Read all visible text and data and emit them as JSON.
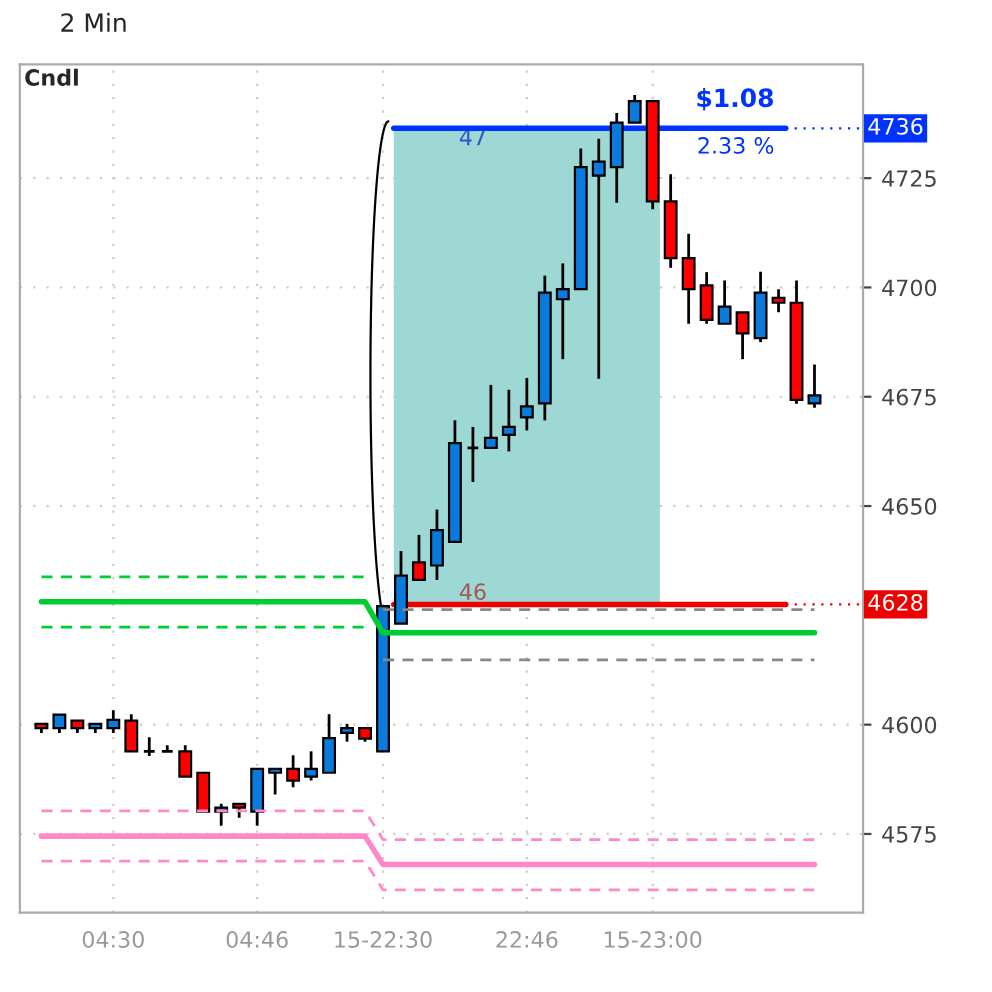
{
  "chart_data": {
    "type": "candlestick",
    "title": "2 Min",
    "categories": [
      null,
      null,
      null,
      null,
      "04:30",
      null,
      null,
      null,
      null,
      null,
      null,
      null,
      "04:46",
      null,
      null,
      null,
      null,
      null,
      null,
      "15-22:30",
      null,
      null,
      null,
      null,
      null,
      null,
      null,
      "22:46",
      null,
      null,
      null,
      null,
      null,
      null,
      "15-23:00",
      null,
      null,
      null,
      null,
      null,
      null,
      null,
      null,
      null
    ],
    "ohlc": [
      [
        4600.2,
        4600.2,
        4598.1,
        4599.2
      ],
      [
        4599.2,
        4602.3,
        4598.1,
        4602.3
      ],
      [
        4600.9,
        4600.9,
        4598.1,
        4599.2
      ],
      [
        4599.2,
        4600.2,
        4598.1,
        4600.2
      ],
      [
        4599.2,
        4603.3,
        4598.1,
        4601.1
      ],
      [
        4600.9,
        4602.4,
        4593.9,
        4593.9
      ],
      [
        4593.9,
        4597.1,
        4592.8,
        4593.9
      ],
      [
        4593.9,
        4595.3,
        4593.9,
        4593.9
      ],
      [
        4593.9,
        4595.3,
        4588.1,
        4588.1
      ],
      [
        4589.0,
        4589.0,
        4580.1,
        4580.1
      ],
      [
        4580.1,
        4581.9,
        4576.9,
        4581.0
      ],
      [
        4581.9,
        4581.9,
        4578.7,
        4581.0
      ],
      [
        4580.1,
        4589.9,
        4576.9,
        4589.9
      ],
      [
        4589.0,
        4589.9,
        4584.0,
        4589.9
      ],
      [
        4589.9,
        4593.0,
        4585.7,
        4587.2
      ],
      [
        4588.1,
        4593.9,
        4587.2,
        4589.9
      ],
      [
        4589.0,
        4602.4,
        4589.0,
        4596.9
      ],
      [
        4598.1,
        4600.2,
        4596.1,
        4599.2
      ],
      [
        4599.2,
        4599.2,
        4596.1,
        4596.8
      ],
      [
        4593.9,
        4627.1,
        4593.9,
        4627.1
      ],
      [
        4623.1,
        4639.7,
        4623.1,
        4634.1
      ],
      [
        4637.1,
        4643.4,
        4633.1,
        4633.1
      ],
      [
        4636.4,
        4649.2,
        4633.1,
        4644.5
      ],
      [
        4641.8,
        4669.6,
        4641.8,
        4664.4
      ],
      [
        4663.3,
        4668.1,
        4655.5,
        4663.3
      ],
      [
        4663.3,
        4677.7,
        4663.3,
        4665.6
      ],
      [
        4666.3,
        4676.6,
        4662.5,
        4668.1
      ],
      [
        4670.3,
        4679.3,
        4667.3,
        4672.8
      ],
      [
        4673.5,
        4702.7,
        4669.6,
        4698.8
      ],
      [
        4697.3,
        4705.5,
        4683.6,
        4699.6
      ],
      [
        4699.6,
        4731.8,
        4699.6,
        4727.5
      ],
      [
        4725.6,
        4734.0,
        4679.1,
        4728.8
      ],
      [
        4727.5,
        4739.9,
        4719.4,
        4737.7
      ],
      [
        4737.7,
        4744.0,
        4737.7,
        4742.6
      ],
      [
        4742.6,
        4742.6,
        4717.9,
        4719.7
      ],
      [
        4719.7,
        4725.9,
        4704.5,
        4706.7
      ],
      [
        4706.7,
        4712.3,
        4691.7,
        4699.6
      ],
      [
        4700.5,
        4703.5,
        4691.7,
        4692.6
      ],
      [
        4691.7,
        4701.6,
        4691.7,
        4695.6
      ],
      [
        4694.3,
        4694.3,
        4683.6,
        4689.5
      ],
      [
        4688.4,
        4703.6,
        4687.5,
        4698.8
      ],
      [
        4697.6,
        4699.6,
        4694.3,
        4696.5
      ],
      [
        4696.5,
        4701.6,
        4673.4,
        4674.3
      ],
      [
        4673.5,
        4682.4,
        4672.5,
        4675.3
      ]
    ],
    "colors": [
      "#ff0000",
      "#0a7bdc",
      "#ff0000",
      "#0a7bdc",
      "#0a7bdc",
      "#ff0000",
      "#000000",
      "#000000",
      "#ff0000",
      "#ff0000",
      "#0a7bdc",
      "#ff0000",
      "#0a7bdc",
      "#0a7bdc",
      "#ff0000",
      "#0a7bdc",
      "#0a7bdc",
      "#0a7bdc",
      "#ff0000",
      "#0a7bdc",
      "#0a7bdc",
      "#ff0000",
      "#0a7bdc",
      "#0a7bdc",
      "#000000",
      "#0a7bdc",
      "#0a7bdc",
      "#0a7bdc",
      "#0a7bdc",
      "#0a7bdc",
      "#0a7bdc",
      "#0a7bdc",
      "#0a7bdc",
      "#0a7bdc",
      "#ff0000",
      "#ff0000",
      "#ff0000",
      "#ff0000",
      "#0a7bdc",
      "#ff0000",
      "#0a7bdc",
      "#ff0000",
      "#ff0000",
      "#0a7bdc"
    ],
    "series": [
      {
        "type": "line",
        "color": "#00cc33",
        "line_style": "dashed",
        "values": [
          4633.8,
          4633.8,
          4633.8,
          4633.8,
          4633.8,
          4633.8,
          4633.8,
          4633.8,
          4633.8,
          4633.8,
          4633.8,
          4633.8,
          4633.8,
          4633.8,
          4633.8,
          4633.8,
          4633.8,
          4633.8,
          4633.8,
          null,
          null,
          null,
          null,
          null,
          null,
          null,
          null,
          null,
          null,
          null,
          null,
          null,
          null,
          null,
          null,
          null,
          null,
          null,
          null,
          null,
          null,
          null,
          null,
          null
        ]
      },
      {
        "type": "line",
        "color": "#00cc33",
        "line_style": "solid",
        "values": [
          4628.1,
          4628.1,
          4628.1,
          4628.1,
          4628.1,
          4628.1,
          4628.1,
          4628.1,
          4628.1,
          4628.1,
          4628.1,
          4628.1,
          4628.1,
          4628.1,
          4628.1,
          4628.1,
          4628.1,
          4628.1,
          4628.1,
          4621.0,
          4621.0,
          4621.0,
          4621.0,
          4621.0,
          4621.0,
          4621.0,
          4621.0,
          4621.0,
          4621.0,
          4621.0,
          4621.0,
          4621.0,
          4621.0,
          4621.0,
          4621.0,
          4621.0,
          4621.0,
          4621.0,
          4621.0,
          4621.0,
          4621.0,
          4621.0,
          4621.0,
          4621.0
        ]
      },
      {
        "type": "line",
        "color": "#00cc33",
        "line_style": "dashed",
        "values": [
          4622.3,
          4622.3,
          4622.3,
          4622.3,
          4622.3,
          4622.3,
          4622.3,
          4622.3,
          4622.3,
          4622.3,
          4622.3,
          4622.3,
          4622.3,
          4622.3,
          4622.3,
          4622.3,
          4622.3,
          4622.3,
          4622.3,
          null,
          null,
          null,
          null,
          null,
          null,
          null,
          null,
          null,
          null,
          null,
          null,
          null,
          null,
          null,
          null,
          null,
          null,
          null,
          null,
          null,
          null,
          null,
          null,
          null
        ]
      },
      {
        "type": "line",
        "color": "#888888",
        "line_style": "dashed",
        "values": [
          null,
          null,
          null,
          null,
          null,
          null,
          null,
          null,
          null,
          null,
          null,
          null,
          null,
          null,
          null,
          null,
          null,
          null,
          null,
          4626.3,
          4626.3,
          4626.3,
          4626.3,
          4626.3,
          4626.3,
          4626.3,
          4626.3,
          4626.3,
          4626.3,
          4626.3,
          4626.3,
          4626.3,
          4626.3,
          4626.3,
          4626.3,
          4626.3,
          4626.3,
          4626.3,
          4626.3,
          4626.3,
          4626.3,
          4626.3,
          4626.3,
          4626.3
        ]
      },
      {
        "type": "line",
        "color": "#888888",
        "line_style": "dashed",
        "values": [
          null,
          null,
          null,
          null,
          null,
          null,
          null,
          null,
          null,
          null,
          null,
          null,
          null,
          null,
          null,
          null,
          null,
          null,
          null,
          4614.8,
          4614.8,
          4614.8,
          4614.8,
          4614.8,
          4614.8,
          4614.8,
          4614.8,
          4614.8,
          4614.8,
          4614.8,
          4614.8,
          4614.8,
          4614.8,
          4614.8,
          4614.8,
          4614.8,
          4614.8,
          4614.8,
          4614.8,
          4614.8,
          4614.8,
          4614.8,
          4614.8,
          4614.8
        ]
      },
      {
        "type": "line",
        "color": "#ff88c8",
        "line_style": "dashed",
        "values": [
          4580.3,
          4580.3,
          4580.3,
          4580.3,
          4580.3,
          4580.3,
          4580.3,
          4580.3,
          4580.3,
          4580.3,
          4580.3,
          4580.3,
          4580.3,
          4580.3,
          4580.3,
          4580.3,
          4580.3,
          4580.3,
          4580.3,
          4573.7,
          4573.7,
          4573.7,
          4573.7,
          4573.7,
          4573.7,
          4573.7,
          4573.7,
          4573.7,
          4573.7,
          4573.7,
          4573.7,
          4573.7,
          4573.7,
          4573.7,
          4573.7,
          4573.7,
          4573.7,
          4573.7,
          4573.7,
          4573.7,
          4573.7,
          4573.7,
          4573.7,
          4573.7
        ]
      },
      {
        "type": "line",
        "color": "#ff88c8",
        "line_style": "solid",
        "values": [
          4574.5,
          4574.5,
          4574.5,
          4574.5,
          4574.5,
          4574.5,
          4574.5,
          4574.5,
          4574.5,
          4574.5,
          4574.5,
          4574.5,
          4574.5,
          4574.5,
          4574.5,
          4574.5,
          4574.5,
          4574.5,
          4574.5,
          4568.0,
          4568.0,
          4568.0,
          4568.0,
          4568.0,
          4568.0,
          4568.0,
          4568.0,
          4568.0,
          4568.0,
          4568.0,
          4568.0,
          4568.0,
          4568.0,
          4568.0,
          4568.0,
          4568.0,
          4568.0,
          4568.0,
          4568.0,
          4568.0,
          4568.0,
          4568.0,
          4568.0,
          4568.0
        ]
      },
      {
        "type": "line",
        "color": "#ff88c8",
        "line_style": "dashed",
        "values": [
          4568.8,
          4568.8,
          4568.8,
          4568.8,
          4568.8,
          4568.8,
          4568.8,
          4568.8,
          4568.8,
          4568.8,
          4568.8,
          4568.8,
          4568.8,
          4568.8,
          4568.8,
          4568.8,
          4568.8,
          4568.8,
          4568.8,
          4562.2,
          4562.2,
          4562.2,
          4562.2,
          4562.2,
          4562.2,
          4562.2,
          4562.2,
          4562.2,
          4562.2,
          4562.2,
          4562.2,
          4562.2,
          4562.2,
          4562.2,
          4562.2,
          4562.2,
          4562.2,
          4562.2,
          4562.2,
          4562.2,
          4562.2,
          4562.2,
          4562.2,
          4562.2
        ]
      }
    ],
    "ylim": [
      4557,
      4751
    ],
    "yticks": [
      4575,
      4600,
      4650,
      4675,
      4700,
      4725
    ],
    "ref_lines": [
      {
        "axis": "y",
        "value": 4736.4,
        "label": "4736",
        "color": "#0033ff"
      },
      {
        "axis": "y",
        "value": 4627.5,
        "label": "4628",
        "color": "#ee0000"
      }
    ],
    "bands": [
      {
        "axis": "y",
        "from": 4627.5,
        "to": 4736.4,
        "color": "#9ed8d4"
      }
    ],
    "annotations": [
      "Cndl",
      "47",
      "46",
      "$1.08",
      "2.33 %"
    ],
    "grid": true
  }
}
